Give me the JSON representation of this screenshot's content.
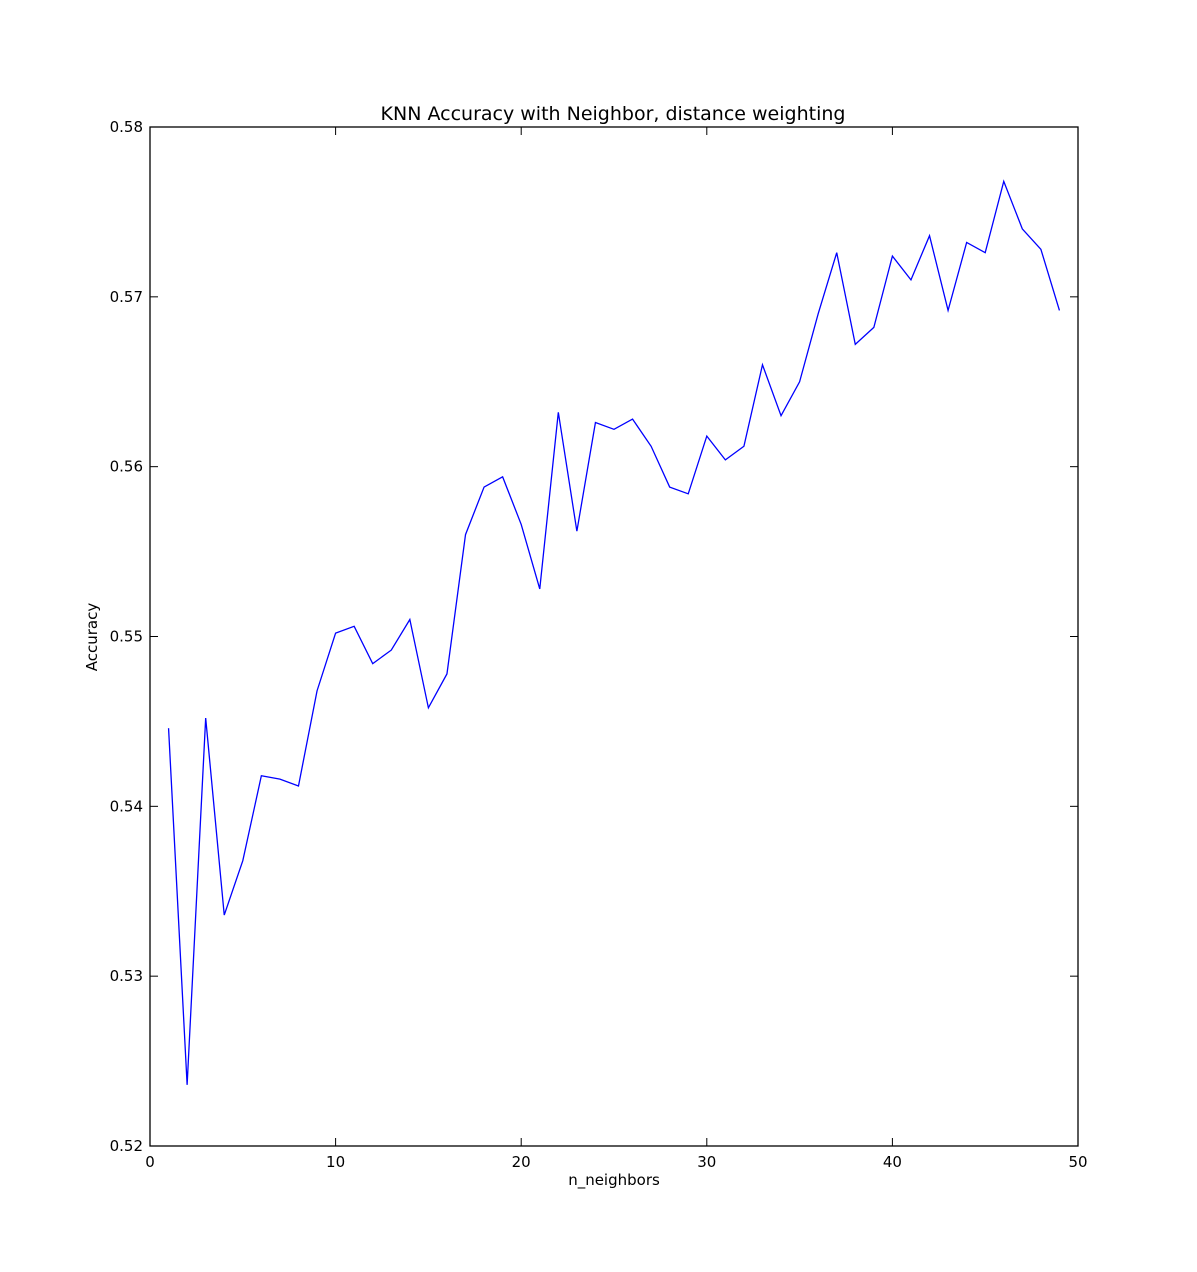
{
  "chart_data": {
    "type": "line",
    "title": "KNN Accuracy with Neighbor, distance weighting",
    "xlabel": "n_neighbors",
    "ylabel": "Accuracy",
    "xlim": [
      0,
      50
    ],
    "ylim": [
      0.52,
      0.58
    ],
    "x_ticks": [
      0,
      10,
      20,
      30,
      40,
      50
    ],
    "x_tick_labels": [
      "0",
      "10",
      "20",
      "30",
      "40",
      "50"
    ],
    "y_ticks": [
      0.52,
      0.53,
      0.54,
      0.55,
      0.56,
      0.57,
      0.58
    ],
    "y_tick_labels": [
      "0.52",
      "0.53",
      "0.54",
      "0.55",
      "0.56",
      "0.57",
      "0.58"
    ],
    "grid": false,
    "line_color": "#0000ff",
    "series": [
      {
        "x": [
          1,
          2,
          3,
          4,
          5,
          6,
          7,
          8,
          9,
          10,
          11,
          12,
          13,
          14,
          15,
          16,
          17,
          18,
          19,
          20,
          21,
          22,
          23,
          24,
          25,
          26,
          27,
          28,
          29,
          30,
          31,
          32,
          33,
          34,
          35,
          36,
          37,
          38,
          39,
          40,
          41,
          42,
          43,
          44,
          45,
          46,
          47,
          48,
          49
        ],
        "values": [
          0.5446,
          0.5236,
          0.5452,
          0.5336,
          0.5368,
          0.5418,
          0.5416,
          0.5412,
          0.5468,
          0.5502,
          0.5506,
          0.5484,
          0.5492,
          0.551,
          0.5458,
          0.5478,
          0.556,
          0.5588,
          0.5594,
          0.5566,
          0.5528,
          0.5632,
          0.5562,
          0.5626,
          0.5622,
          0.5628,
          0.5612,
          0.5588,
          0.5584,
          0.5618,
          0.5604,
          0.5612,
          0.566,
          0.563,
          0.565,
          0.569,
          0.5726,
          0.5672,
          0.5682,
          0.5724,
          0.571,
          0.5736,
          0.5692,
          0.5732,
          0.5726,
          0.5768,
          0.574,
          0.5728,
          0.5692
        ]
      }
    ]
  }
}
